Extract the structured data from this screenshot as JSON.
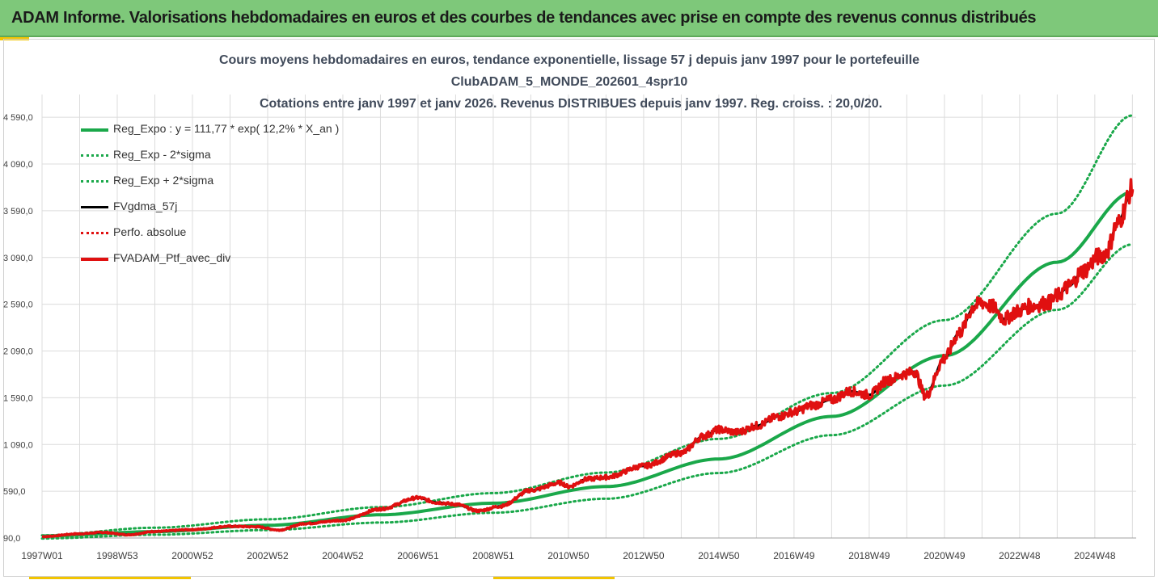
{
  "header": {
    "title": "ADAM Informe. Valorisations hebdomadaires en euros et des courbes de tendances avec prise en compte des revenus connus distribués"
  },
  "colors": {
    "reg_expo": "#1aa84a",
    "sigma": "#1aa84a",
    "fvgdma": "#000000",
    "perfo": "#e01010",
    "fvadam": "#e01010",
    "grid": "#dcdcdc",
    "accent": "#f2c400",
    "banner": "#7ec87a"
  },
  "chart_data": {
    "type": "line",
    "title": [
      "Cours moyens hebdomadaires  en euros, tendance exponentielle, lissage 57 j depuis janv 1997 pour le portefeuille",
      "ClubADAM_5_MONDE_202601_4spr10",
      "Cotations entre janv 1997 et janv 2026. Revenus DISTRIBUES depuis janv 1997. Reg. croiss. : 20,0/20."
    ],
    "ylim": [
      90,
      4790
    ],
    "yticks": [
      "90,0",
      "590,0",
      "1 090,0",
      "1 590,0",
      "2 090,0",
      "2 590,0",
      "3 090,0",
      "3 590,0",
      "4 090,0",
      "4 590,0"
    ],
    "ytick_values": [
      90,
      590,
      1090,
      1590,
      2090,
      2590,
      3090,
      3590,
      4090,
      4590
    ],
    "xlim": [
      1997.0,
      2026.1
    ],
    "xticks": [
      "1997W01",
      "1998W53",
      "2000W52",
      "2002W52",
      "2004W52",
      "2006W51",
      "2008W51",
      "2010W50",
      "2012W50",
      "2014W50",
      "2016W49",
      "2018W49",
      "2020W49",
      "2022W48",
      "2024W48"
    ],
    "xtick_values": [
      1997.0,
      1999.0,
      2001.0,
      2003.0,
      2005.0,
      2007.0,
      2009.0,
      2011.0,
      2013.0,
      2015.0,
      2017.0,
      2019.0,
      2021.0,
      2023.0,
      2025.0
    ],
    "legend": [
      {
        "name": "Reg_Expo : y = 111,77 * exp( 12,2% *  X_an )",
        "style": "solid",
        "color_key": "reg_expo",
        "width": 4
      },
      {
        "name": "Reg_Exp - 2*sigma",
        "style": "dotted",
        "color_key": "sigma",
        "width": 3
      },
      {
        "name": "Reg_Exp + 2*sigma",
        "style": "dotted",
        "color_key": "sigma",
        "width": 3
      },
      {
        "name": "FVgdma_57j",
        "style": "solid",
        "color_key": "fvgdma",
        "width": 3
      },
      {
        "name": "Perfo. absolue",
        "style": "dotted",
        "color_key": "perfo",
        "width": 3
      },
      {
        "name": "FVADAM_Ptf_avec_div",
        "style": "solid",
        "color_key": "fvadam",
        "width": 4
      }
    ],
    "series": [
      {
        "name": "Reg_Expo",
        "x": [
          1997.0,
          2000.0,
          2003.0,
          2006.0,
          2009.0,
          2012.0,
          2015.0,
          2018.0,
          2021.0,
          2024.0,
          2026.0
        ],
        "values": [
          112,
          158,
          226,
          338,
          462,
          640,
          935,
          1390,
          2040,
          3040,
          3790
        ]
      },
      {
        "name": "Reg_Exp - 2*sigma",
        "x": [
          1997.0,
          2000.0,
          2003.0,
          2006.0,
          2009.0,
          2012.0,
          2015.0,
          2018.0,
          2021.0,
          2024.0,
          2026.0
        ],
        "values": [
          85,
          125,
          175,
          255,
          360,
          510,
          785,
          1190,
          1720,
          2530,
          3230
        ]
      },
      {
        "name": "Reg_Exp + 2*sigma",
        "x": [
          1997.0,
          2000.0,
          2003.0,
          2006.0,
          2009.0,
          2012.0,
          2015.0,
          2018.0,
          2021.0,
          2024.0,
          2026.0
        ],
        "values": [
          118,
          200,
          290,
          420,
          570,
          790,
          1150,
          1640,
          2420,
          3560,
          4610
        ]
      },
      {
        "name": "FVADAM_Ptf_avec_div",
        "x": [
          1997.0,
          1998.0,
          1998.6,
          1999.3,
          2000.0,
          2001.0,
          2002.0,
          2002.7,
          2003.3,
          2004.0,
          2005.0,
          2006.0,
          2007.0,
          2007.5,
          2008.0,
          2008.6,
          2009.2,
          2010.0,
          2010.8,
          2011.0,
          2011.5,
          2012.0,
          2013.0,
          2014.0,
          2014.6,
          2015.0,
          2015.5,
          2016.0,
          2016.6,
          2017.0,
          2017.5,
          2018.0,
          2018.5,
          2019.0,
          2019.5,
          2020.0,
          2020.2,
          2020.5,
          2021.0,
          2021.4,
          2021.8,
          2022.0,
          2022.3,
          2022.6,
          2022.9,
          2023.3,
          2023.8,
          2024.0,
          2024.3,
          2024.7,
          2025.1,
          2025.3,
          2025.6,
          2026.0
        ],
        "values": [
          105,
          135,
          150,
          125,
          160,
          180,
          215,
          210,
          175,
          245,
          280,
          400,
          520,
          470,
          450,
          380,
          430,
          600,
          680,
          640,
          720,
          740,
          860,
          1000,
          1180,
          1250,
          1220,
          1290,
          1390,
          1440,
          1510,
          1570,
          1660,
          1620,
          1780,
          1850,
          1870,
          1610,
          2010,
          2290,
          2570,
          2610,
          2560,
          2430,
          2510,
          2570,
          2610,
          2680,
          2780,
          2950,
          3100,
          3140,
          3450,
          3820
        ]
      }
    ]
  }
}
